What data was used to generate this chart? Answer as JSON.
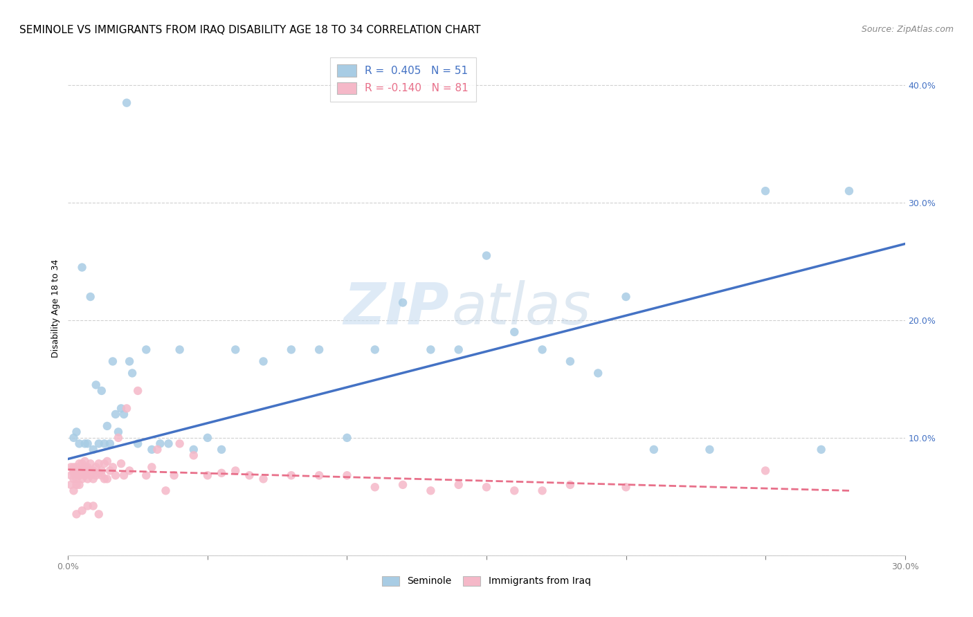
{
  "title": "SEMINOLE VS IMMIGRANTS FROM IRAQ DISABILITY AGE 18 TO 34 CORRELATION CHART",
  "source": "Source: ZipAtlas.com",
  "ylabel": "Disability Age 18 to 34",
  "xlim": [
    0.0,
    0.3
  ],
  "ylim": [
    0.0,
    0.42
  ],
  "blue_color": "#a8cce4",
  "pink_color": "#f5b8c8",
  "blue_line_color": "#4472c4",
  "pink_line_color": "#e8708a",
  "watermark_zip": "ZIP",
  "watermark_atlas": "atlas",
  "background_color": "#ffffff",
  "grid_color": "#d0d0d0",
  "blue_trend_x": [
    0.0,
    0.3
  ],
  "blue_trend_y": [
    0.082,
    0.265
  ],
  "pink_trend_x": [
    0.0,
    0.28
  ],
  "pink_trend_y": [
    0.073,
    0.055
  ],
  "seminole_x": [
    0.021,
    0.005,
    0.008,
    0.01,
    0.012,
    0.014,
    0.016,
    0.018,
    0.02,
    0.022,
    0.025,
    0.028,
    0.03,
    0.033,
    0.036,
    0.04,
    0.045,
    0.05,
    0.055,
    0.06,
    0.07,
    0.08,
    0.09,
    0.1,
    0.11,
    0.12,
    0.13,
    0.14,
    0.15,
    0.16,
    0.17,
    0.18,
    0.19,
    0.2,
    0.21,
    0.23,
    0.25,
    0.27,
    0.28,
    0.002,
    0.003,
    0.004,
    0.006,
    0.007,
    0.009,
    0.011,
    0.013,
    0.015,
    0.017,
    0.019,
    0.023
  ],
  "seminole_y": [
    0.385,
    0.245,
    0.22,
    0.145,
    0.14,
    0.11,
    0.165,
    0.105,
    0.12,
    0.165,
    0.095,
    0.175,
    0.09,
    0.095,
    0.095,
    0.175,
    0.09,
    0.1,
    0.09,
    0.175,
    0.165,
    0.175,
    0.175,
    0.1,
    0.175,
    0.215,
    0.175,
    0.175,
    0.255,
    0.19,
    0.175,
    0.165,
    0.155,
    0.22,
    0.09,
    0.09,
    0.31,
    0.09,
    0.31,
    0.1,
    0.105,
    0.095,
    0.095,
    0.095,
    0.09,
    0.095,
    0.095,
    0.095,
    0.12,
    0.125,
    0.155
  ],
  "iraq_x": [
    0.001,
    0.001,
    0.001,
    0.002,
    0.002,
    0.002,
    0.002,
    0.002,
    0.003,
    0.003,
    0.003,
    0.003,
    0.004,
    0.004,
    0.004,
    0.004,
    0.005,
    0.005,
    0.005,
    0.005,
    0.006,
    0.006,
    0.006,
    0.006,
    0.007,
    0.007,
    0.007,
    0.008,
    0.008,
    0.008,
    0.009,
    0.009,
    0.01,
    0.01,
    0.011,
    0.011,
    0.012,
    0.012,
    0.013,
    0.013,
    0.014,
    0.014,
    0.015,
    0.016,
    0.017,
    0.018,
    0.019,
    0.02,
    0.021,
    0.022,
    0.025,
    0.028,
    0.03,
    0.032,
    0.035,
    0.038,
    0.04,
    0.045,
    0.05,
    0.055,
    0.06,
    0.065,
    0.07,
    0.08,
    0.09,
    0.1,
    0.11,
    0.12,
    0.13,
    0.14,
    0.15,
    0.16,
    0.17,
    0.18,
    0.2,
    0.25,
    0.003,
    0.005,
    0.007,
    0.009,
    0.011
  ],
  "iraq_y": [
    0.068,
    0.075,
    0.06,
    0.065,
    0.07,
    0.055,
    0.072,
    0.075,
    0.065,
    0.07,
    0.06,
    0.075,
    0.068,
    0.072,
    0.06,
    0.078,
    0.065,
    0.07,
    0.072,
    0.078,
    0.068,
    0.072,
    0.075,
    0.08,
    0.065,
    0.07,
    0.075,
    0.068,
    0.072,
    0.078,
    0.065,
    0.072,
    0.068,
    0.075,
    0.07,
    0.078,
    0.068,
    0.072,
    0.065,
    0.078,
    0.065,
    0.08,
    0.072,
    0.075,
    0.068,
    0.1,
    0.078,
    0.068,
    0.125,
    0.072,
    0.14,
    0.068,
    0.075,
    0.09,
    0.055,
    0.068,
    0.095,
    0.085,
    0.068,
    0.07,
    0.072,
    0.068,
    0.065,
    0.068,
    0.068,
    0.068,
    0.058,
    0.06,
    0.055,
    0.06,
    0.058,
    0.055,
    0.055,
    0.06,
    0.058,
    0.072,
    0.035,
    0.038,
    0.042,
    0.042,
    0.035
  ]
}
